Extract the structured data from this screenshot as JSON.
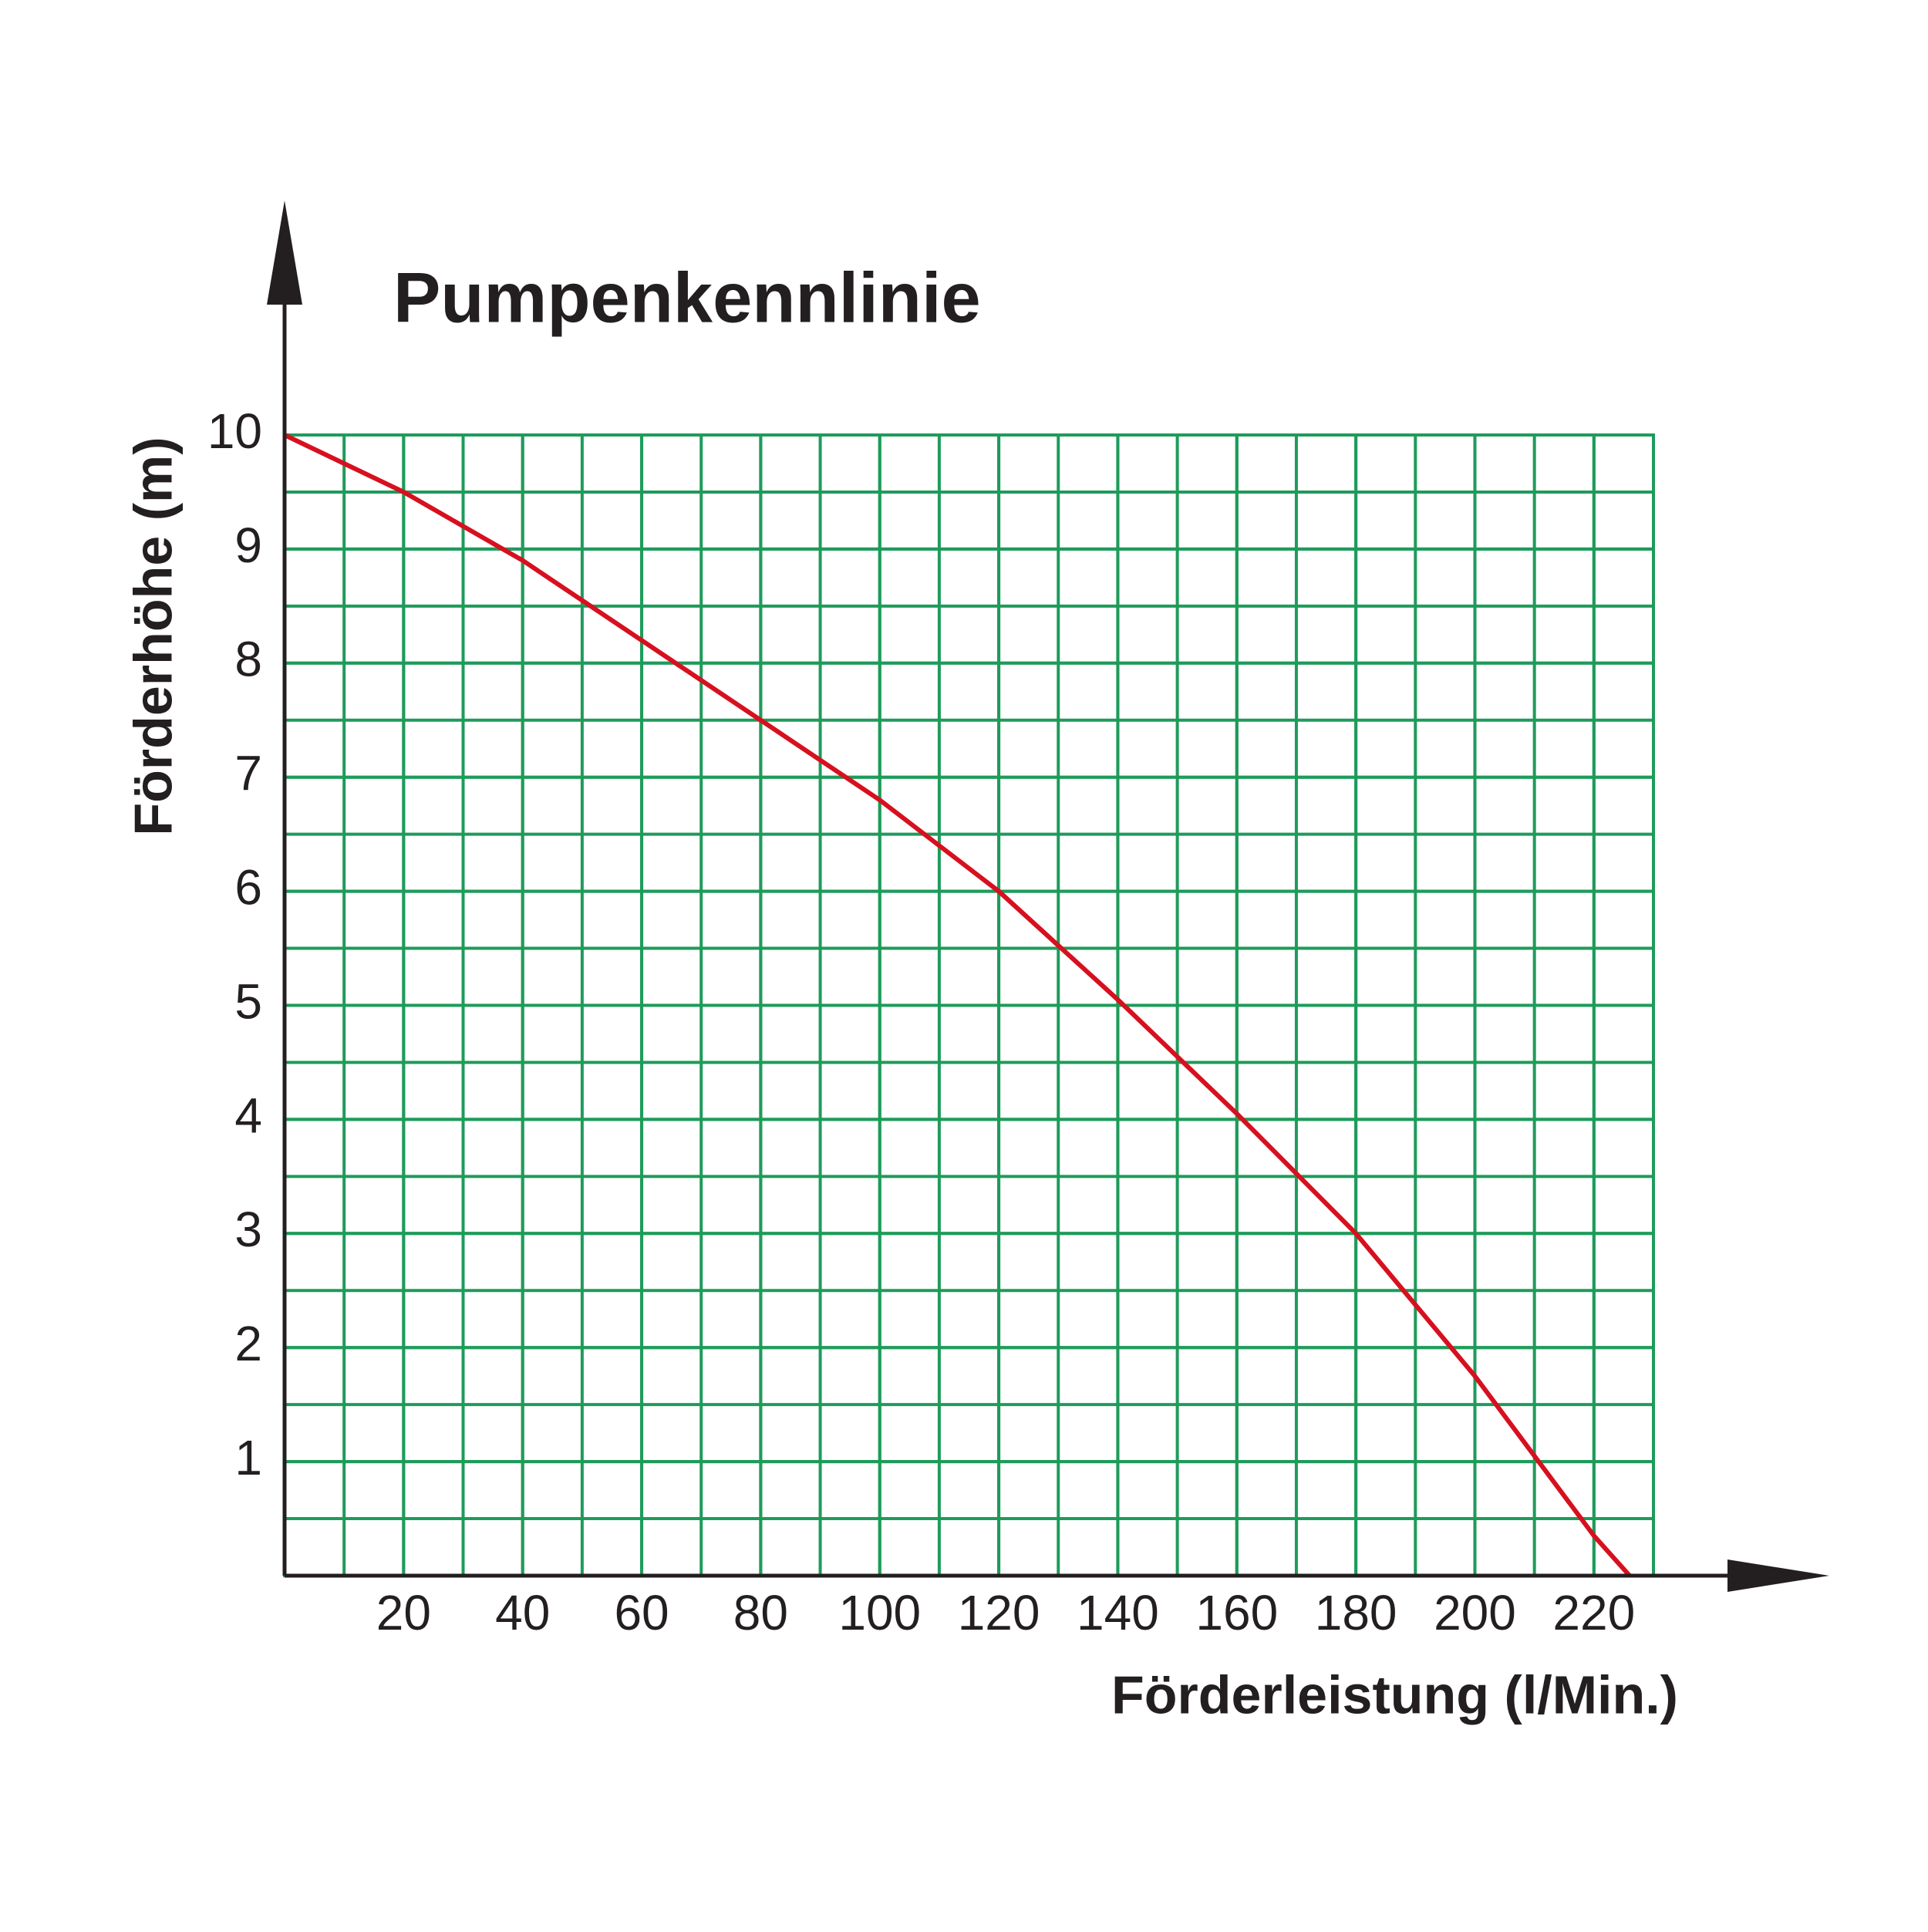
{
  "chart_data": {
    "type": "line",
    "title": "Pumpenkennlinie",
    "x_label": "Förderleistung (l/Min.)",
    "y_label": "Förderhöhe (m)",
    "xlim": [
      0,
      230
    ],
    "ylim": [
      0,
      10
    ],
    "xticks": [
      20,
      40,
      60,
      80,
      100,
      120,
      140,
      160,
      180,
      200,
      220
    ],
    "yticks": [
      1,
      2,
      3,
      4,
      5,
      6,
      7,
      8,
      9,
      10
    ],
    "grid": true,
    "grid_color": "#1e9b5a",
    "series": [
      {
        "color": "#d7101f",
        "x": [
          0,
          20,
          40,
          60,
          80,
          100,
          120,
          140,
          160,
          180,
          200,
          220,
          226
        ],
        "values": [
          10,
          9.5,
          8.9,
          8.2,
          7.5,
          6.8,
          6.0,
          5.05,
          4.05,
          3.0,
          1.75,
          0.35,
          0
        ]
      }
    ]
  }
}
